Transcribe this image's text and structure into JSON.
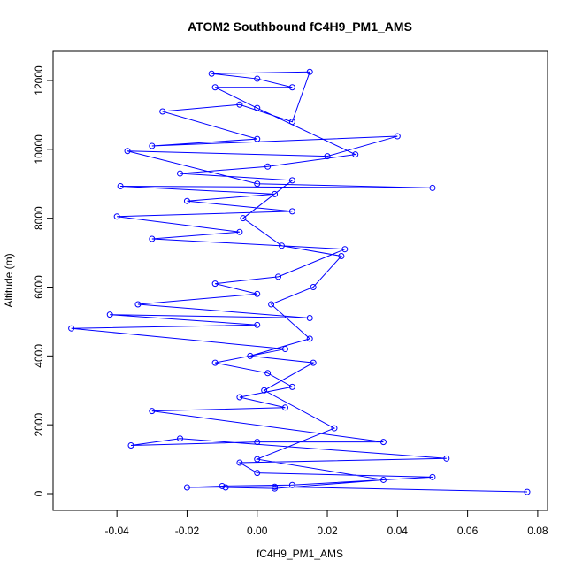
{
  "chart_data": {
    "type": "line",
    "markers": true,
    "title": "ATOM2 Southbound fC4H9_PM1_AMS",
    "x_label": "fC4H9_PM1_AMS",
    "y_label": "Altitude (m)",
    "x": [
      0.077,
      0.005,
      -0.02,
      -0.01,
      0.01,
      0.05,
      0.0,
      -0.005,
      0.054,
      -0.022,
      -0.036,
      0.0,
      0.036,
      -0.03,
      0.008,
      -0.005,
      0.01,
      0.003,
      -0.012,
      0.008,
      -0.053,
      0.0,
      -0.042,
      0.015,
      -0.034,
      0.0,
      -0.012,
      0.006,
      0.025,
      -0.03,
      -0.005,
      -0.04,
      0.01,
      -0.02,
      0.005,
      -0.039,
      0.05,
      0.0,
      -0.037,
      0.02,
      0.04,
      -0.03,
      0.0,
      -0.027,
      -0.005,
      0.01,
      0.015,
      -0.013,
      0.0,
      0.01,
      -0.012,
      0.0,
      0.028,
      0.003,
      -0.022,
      0.01,
      -0.004,
      0.007,
      0.024,
      0.016,
      0.004,
      0.015,
      -0.002,
      0.016,
      0.002,
      0.022,
      0.0,
      0.036,
      0.005,
      -0.009
    ],
    "series": [
      {
        "color": "#0000ff",
        "values": [
          50,
          200,
          180,
          220,
          250,
          480,
          600,
          900,
          1020,
          1600,
          1400,
          1500,
          1500,
          2400,
          2500,
          2800,
          3100,
          3500,
          3800,
          4200,
          4800,
          4900,
          5200,
          5100,
          5500,
          5800,
          6100,
          6300,
          7100,
          7400,
          7600,
          8050,
          8200,
          8500,
          8700,
          8930,
          8880,
          9000,
          9950,
          9800,
          10380,
          10100,
          10300,
          11100,
          11300,
          10800,
          12250,
          12200,
          12050,
          11800,
          11800,
          11200,
          9850,
          9500,
          9300,
          9100,
          8000,
          7200,
          6900,
          6000,
          5500,
          4500,
          4000,
          3800,
          3000,
          1900,
          1000,
          400,
          150,
          180
        ]
      }
    ],
    "xlim": [
      -0.0582,
      0.0828
    ],
    "ylim": [
      -488,
      12848
    ],
    "xticks": [
      -0.04,
      -0.02,
      {
        "value": 0,
        "label": "0.00"
      },
      0.02,
      0.04,
      0.06,
      0.08
    ],
    "yticks": [
      0,
      2000,
      4000,
      6000,
      8000,
      10000,
      12000
    ]
  }
}
